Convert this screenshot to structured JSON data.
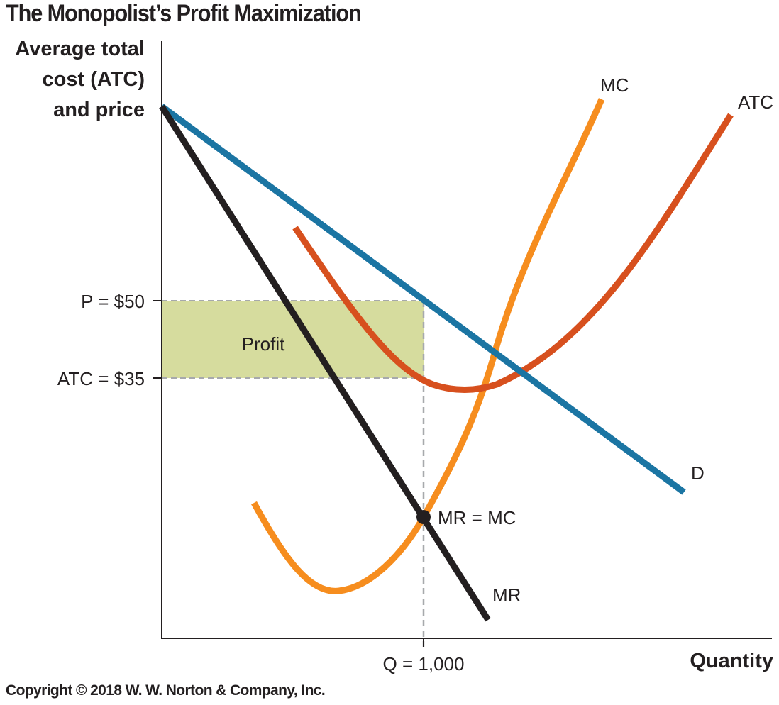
{
  "chart_data": {
    "type": "line",
    "title": "The Monopolist’s Profit Maximization",
    "ylabel": "Average total\ncost (ATC)\nand price",
    "xlabel": "Quantity",
    "y_ticks": [
      {
        "label": "P = $50",
        "value": 50
      },
      {
        "label": "ATC = $35",
        "value": 35
      }
    ],
    "x_ticks": [
      {
        "label": "Q = 1,000",
        "value": 1000
      }
    ],
    "series": [
      {
        "name": "D",
        "color": "#1b75a3",
        "type": "line"
      },
      {
        "name": "MR",
        "color": "#231f20",
        "type": "line"
      },
      {
        "name": "MC",
        "color": "#f68d1e",
        "type": "curve"
      },
      {
        "name": "ATC",
        "color": "#d7501e",
        "type": "curve"
      }
    ],
    "regions": [
      {
        "label": "Profit",
        "color": "#d6dc9e",
        "y_from": 35,
        "y_to": 50,
        "x_to": 1000
      }
    ],
    "points": [
      {
        "label": "MR = MC",
        "x": 1000
      }
    ]
  },
  "copyright": "Copyright © 2018 W. W. Norton & Company, Inc."
}
